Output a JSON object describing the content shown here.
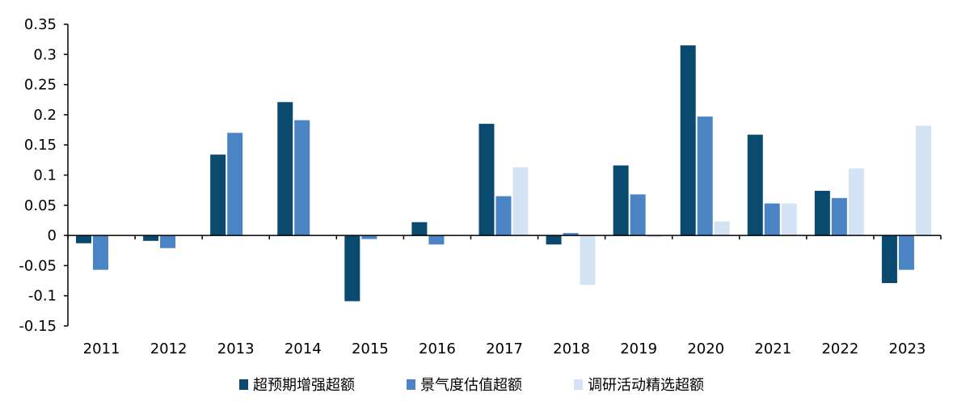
{
  "chart_data": {
    "type": "bar",
    "title": "",
    "xlabel": "",
    "ylabel": "",
    "categories": [
      "2011",
      "2012",
      "2013",
      "2014",
      "2015",
      "2016",
      "2017",
      "2018",
      "2019",
      "2020",
      "2021",
      "2022",
      "2023"
    ],
    "ylim": [
      -0.15,
      0.35
    ],
    "yticks": [
      -0.15,
      -0.1,
      -0.05,
      0,
      0.05,
      0.1,
      0.15,
      0.2,
      0.25,
      0.3,
      0.35
    ],
    "ytick_labels": [
      "-0.15",
      "-0.1",
      "-0.05",
      "0",
      "0.05",
      "0.1",
      "0.15",
      "0.2",
      "0.25",
      "0.3",
      "0.35"
    ],
    "grid": false,
    "legend_position": "bottom",
    "series": [
      {
        "name": "超预期增强超额",
        "color": "#0b4a6f",
        "values": [
          -0.013,
          -0.009,
          0.134,
          0.221,
          -0.109,
          0.022,
          0.185,
          -0.015,
          0.116,
          0.315,
          0.167,
          0.074,
          -0.079
        ]
      },
      {
        "name": "景气度估值超额",
        "color": "#4a84c4",
        "values": [
          -0.057,
          -0.021,
          0.17,
          0.191,
          -0.006,
          -0.015,
          0.065,
          0.004,
          0.068,
          0.197,
          0.053,
          0.062,
          -0.057
        ]
      },
      {
        "name": "调研活动精选超额",
        "color": "#d3e3f3",
        "values": [
          null,
          null,
          null,
          null,
          null,
          null,
          0.113,
          -0.082,
          -0.003,
          0.023,
          0.053,
          0.111,
          0.182
        ]
      }
    ]
  }
}
